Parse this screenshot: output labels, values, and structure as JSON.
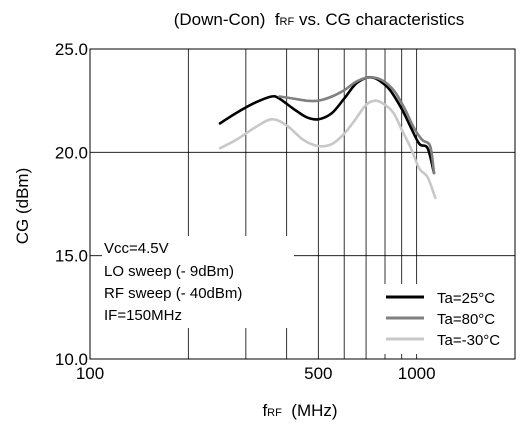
{
  "chart_data": {
    "type": "line",
    "title": "(Down-Con)  fRF vs. CG characteristics",
    "title_parts": [
      "(Down-Con)  ",
      "f",
      "RF",
      " vs. CG characteristics"
    ],
    "xlabel_parts": [
      "f",
      "RF",
      "  (MHz)"
    ],
    "ylabel": "CG  (dBm)",
    "x_scale": "log",
    "xlim": [
      100,
      2000
    ],
    "ylim": [
      10,
      25
    ],
    "x_tick_labels": [
      {
        "value": 100,
        "label": "100"
      },
      {
        "value": 500,
        "label": "500"
      },
      {
        "value": 1000,
        "label": "1000"
      }
    ],
    "x_grid": [
      200,
      300,
      400,
      500,
      600,
      700,
      800,
      900,
      1000
    ],
    "y_ticks": [
      {
        "value": 10,
        "label": "10.0"
      },
      {
        "value": 15,
        "label": "15.0"
      },
      {
        "value": 20,
        "label": "20.0"
      },
      {
        "value": 25,
        "label": "25.0"
      }
    ],
    "conditions": [
      "Vcc=4.5V",
      "LO sweep (- 9dBm)",
      "RF sweep (- 40dBm)",
      "IF=150MHz"
    ],
    "legend_position": "bottom-right",
    "series": [
      {
        "name": "Ta=25°C",
        "color": "#000000",
        "x": [
          250,
          280,
          320,
          360,
          380,
          420,
          460,
          500,
          550,
          600,
          650,
          700,
          740,
          780,
          830,
          900,
          960,
          1020,
          1080,
          1130
        ],
        "y": [
          21.4,
          21.9,
          22.4,
          22.7,
          22.6,
          22.1,
          21.7,
          21.6,
          21.9,
          22.6,
          23.3,
          23.6,
          23.6,
          23.4,
          23.0,
          22.1,
          21.2,
          20.4,
          20.2,
          19.0
        ]
      },
      {
        "name": "Ta=80°C",
        "color": "#808080",
        "x": [
          380,
          420,
          460,
          500,
          550,
          600,
          650,
          700,
          750,
          800,
          860,
          920,
          980,
          1040,
          1100,
          1130
        ],
        "y": [
          22.7,
          22.6,
          22.5,
          22.5,
          22.7,
          23.0,
          23.4,
          23.6,
          23.6,
          23.4,
          22.9,
          22.1,
          21.2,
          20.6,
          20.3,
          19.0
        ]
      },
      {
        "name": "Ta=-30°C",
        "color": "#c8c8c8",
        "x": [
          250,
          280,
          320,
          360,
          400,
          450,
          500,
          550,
          600,
          650,
          700,
          750,
          800,
          850,
          900,
          960,
          1020,
          1080,
          1140
        ],
        "y": [
          20.2,
          20.6,
          21.2,
          21.6,
          21.3,
          20.6,
          20.3,
          20.4,
          20.9,
          21.6,
          22.3,
          22.5,
          22.3,
          21.9,
          21.1,
          20.2,
          19.2,
          18.8,
          17.8
        ]
      }
    ]
  }
}
